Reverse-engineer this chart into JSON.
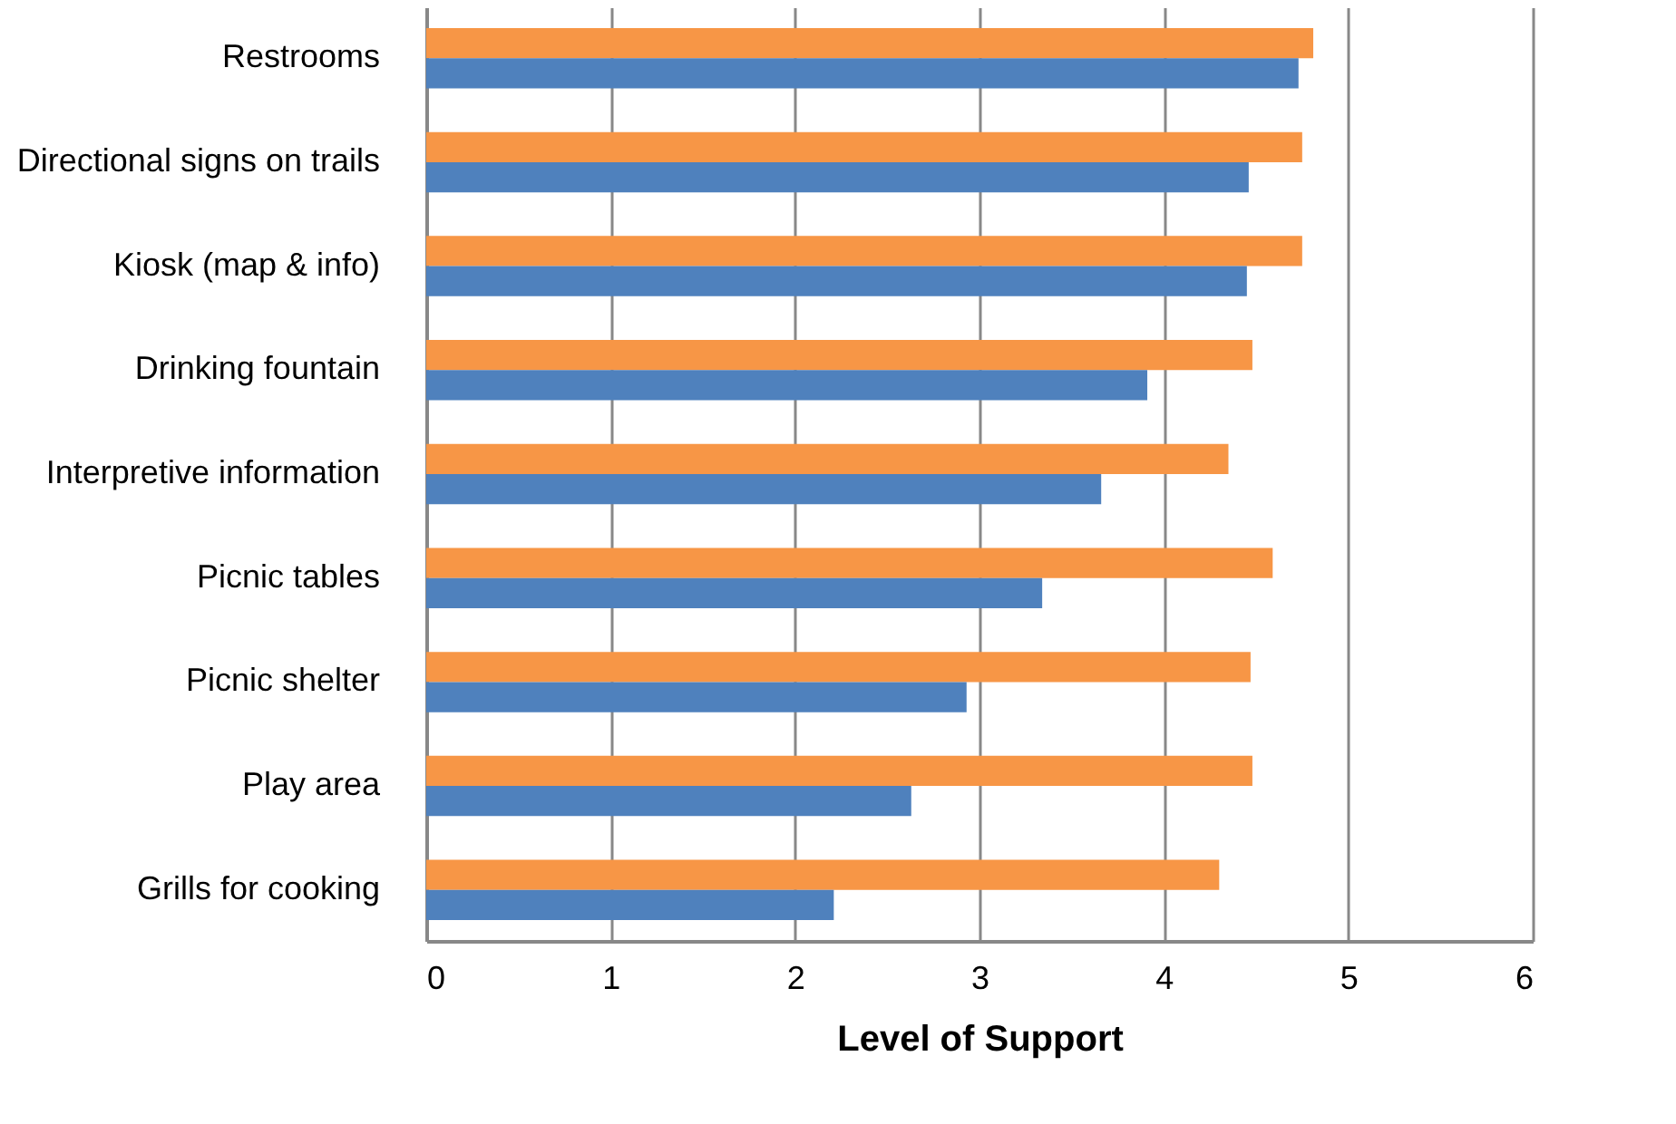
{
  "chart_data": {
    "type": "bar",
    "orientation": "horizontal",
    "xlabel": "Level of Support",
    "categories": [
      "Restrooms",
      "Directional signs on trails",
      "Kiosk (map & info)",
      "Drinking fountain",
      "Interpretive information",
      "Picnic tables",
      "Picnic shelter",
      "Play area",
      "Grills for cooking"
    ],
    "series": [
      {
        "color": "#f79646",
        "values": [
          4.81,
          4.75,
          4.75,
          4.48,
          4.35,
          4.59,
          4.47,
          4.48,
          4.3
        ]
      },
      {
        "color": "#4f81bd",
        "values": [
          4.73,
          4.46,
          4.45,
          3.91,
          3.66,
          3.34,
          2.93,
          2.63,
          2.21
        ]
      }
    ],
    "xlim": [
      0,
      6
    ],
    "xticks": [
      0,
      1,
      2,
      3,
      4,
      5,
      6
    ],
    "grid": "x",
    "legend": false
  }
}
